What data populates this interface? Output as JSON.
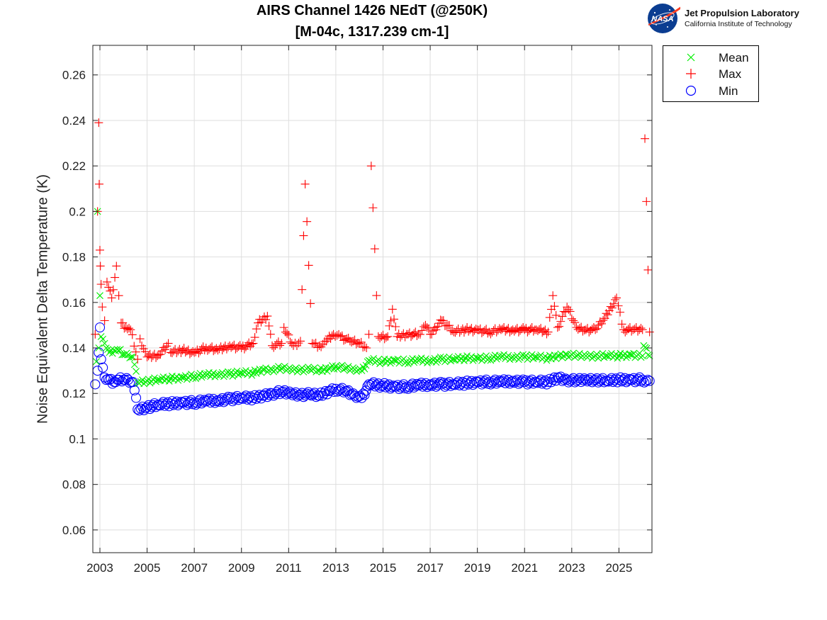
{
  "chart_data": {
    "type": "scatter",
    "title": "AIRS Channel 1426 NEdT (@250K)",
    "subtitle": "[M-04c, 1317.239 cm-1]",
    "ylabel": "Noise Equivalent Delta Temperature (K)",
    "xlim": [
      2002.7,
      2026.4
    ],
    "ylim": [
      0.05,
      0.273
    ],
    "x_ticks": [
      2003,
      2005,
      2007,
      2009,
      2011,
      2013,
      2015,
      2017,
      2019,
      2021,
      2023,
      2025
    ],
    "x_tick_labels": [
      "2003",
      "2005",
      "2007",
      "2009",
      "2011",
      "2013",
      "2015",
      "2017",
      "2019",
      "2021",
      "2023",
      "2025"
    ],
    "y_ticks": [
      0.06,
      0.08,
      0.1,
      0.12,
      0.14,
      0.16,
      0.18,
      0.2,
      0.22,
      0.24,
      0.26
    ],
    "y_tick_labels": [
      "0.06",
      "0.08",
      "0.1",
      "0.12",
      "0.14",
      "0.16",
      "0.18",
      "0.2",
      "0.22",
      "0.24",
      "0.26"
    ],
    "grid": true,
    "legend_position": "outside top-right",
    "series": [
      {
        "name": "Mean",
        "marker": "x",
        "color": "#00ee00",
        "points": [
          [
            2002.85,
            0.134
          ],
          [
            2002.9,
            0.2
          ],
          [
            2002.95,
            0.14
          ],
          [
            2003.0,
            0.163
          ],
          [
            2003.05,
            0.145
          ],
          [
            2003.2,
            0.142
          ],
          [
            2003.4,
            0.138
          ],
          [
            2003.6,
            0.139
          ],
          [
            2003.8,
            0.139
          ],
          [
            2004.0,
            0.137
          ],
          [
            2004.2,
            0.137
          ],
          [
            2004.4,
            0.136
          ],
          [
            2004.6,
            0.125
          ],
          [
            2005.0,
            0.1255
          ],
          [
            2005.5,
            0.126
          ],
          [
            2006.0,
            0.1265
          ],
          [
            2006.5,
            0.127
          ],
          [
            2007.0,
            0.1275
          ],
          [
            2007.5,
            0.128
          ],
          [
            2008.0,
            0.1285
          ],
          [
            2008.5,
            0.1285
          ],
          [
            2009.0,
            0.129
          ],
          [
            2009.5,
            0.129
          ],
          [
            2009.9,
            0.1305
          ],
          [
            2010.3,
            0.1305
          ],
          [
            2010.7,
            0.131
          ],
          [
            2011.1,
            0.1305
          ],
          [
            2011.5,
            0.1305
          ],
          [
            2011.9,
            0.1305
          ],
          [
            2012.3,
            0.13
          ],
          [
            2012.7,
            0.131
          ],
          [
            2013.0,
            0.132
          ],
          [
            2013.4,
            0.131
          ],
          [
            2013.8,
            0.1305
          ],
          [
            2014.1,
            0.13
          ],
          [
            2014.4,
            0.1345
          ],
          [
            2015.0,
            0.134
          ],
          [
            2015.5,
            0.1345
          ],
          [
            2016.0,
            0.134
          ],
          [
            2016.5,
            0.1345
          ],
          [
            2017.0,
            0.1345
          ],
          [
            2017.5,
            0.135
          ],
          [
            2018.0,
            0.135
          ],
          [
            2018.5,
            0.1355
          ],
          [
            2019.0,
            0.1355
          ],
          [
            2019.5,
            0.1355
          ],
          [
            2020.0,
            0.136
          ],
          [
            2020.5,
            0.136
          ],
          [
            2021.0,
            0.136
          ],
          [
            2021.5,
            0.136
          ],
          [
            2022.0,
            0.1355
          ],
          [
            2022.4,
            0.1365
          ],
          [
            2022.8,
            0.137
          ],
          [
            2023.2,
            0.1365
          ],
          [
            2023.6,
            0.1365
          ],
          [
            2024.0,
            0.1365
          ],
          [
            2024.5,
            0.1365
          ],
          [
            2025.0,
            0.1365
          ],
          [
            2025.5,
            0.137
          ],
          [
            2026.0,
            0.1365
          ],
          [
            2026.05,
            0.141
          ],
          [
            2026.3,
            0.1365
          ]
        ]
      },
      {
        "name": "Max",
        "marker": "+",
        "color": "#ff0000",
        "points": [
          [
            2002.8,
            0.146
          ],
          [
            2002.9,
            0.2
          ],
          [
            2002.95,
            0.239
          ],
          [
            2002.97,
            0.212
          ],
          [
            2003.0,
            0.183
          ],
          [
            2003.02,
            0.176
          ],
          [
            2003.05,
            0.168
          ],
          [
            2003.1,
            0.158
          ],
          [
            2003.2,
            0.152
          ],
          [
            2003.3,
            0.169
          ],
          [
            2003.5,
            0.162
          ],
          [
            2003.7,
            0.176
          ],
          [
            2003.8,
            0.163
          ],
          [
            2003.9,
            0.151
          ],
          [
            2004.1,
            0.149
          ],
          [
            2004.3,
            0.148
          ],
          [
            2004.6,
            0.135
          ],
          [
            2004.7,
            0.144
          ],
          [
            2005.0,
            0.136
          ],
          [
            2005.5,
            0.137
          ],
          [
            2005.9,
            0.142
          ],
          [
            2006.0,
            0.138
          ],
          [
            2006.5,
            0.139
          ],
          [
            2007.0,
            0.138
          ],
          [
            2007.5,
            0.14
          ],
          [
            2008.0,
            0.139
          ],
          [
            2008.5,
            0.141
          ],
          [
            2009.0,
            0.14
          ],
          [
            2009.5,
            0.142
          ],
          [
            2009.7,
            0.151
          ],
          [
            2010.1,
            0.154
          ],
          [
            2010.3,
            0.141
          ],
          [
            2010.7,
            0.142
          ],
          [
            2010.8,
            0.149
          ],
          [
            2011.2,
            0.141
          ],
          [
            2011.5,
            0.143
          ],
          [
            2011.7,
            0.212
          ],
          [
            2012.0,
            0.142
          ],
          [
            2012.3,
            0.141
          ],
          [
            2012.6,
            0.143
          ],
          [
            2012.9,
            0.146
          ],
          [
            2013.2,
            0.145
          ],
          [
            2013.6,
            0.143
          ],
          [
            2014.0,
            0.142
          ],
          [
            2014.3,
            0.14
          ],
          [
            2014.4,
            0.146
          ],
          [
            2014.5,
            0.22
          ],
          [
            2014.8,
            0.145
          ],
          [
            2015.2,
            0.145
          ],
          [
            2015.4,
            0.157
          ],
          [
            2015.6,
            0.145
          ],
          [
            2016.0,
            0.146
          ],
          [
            2016.5,
            0.146
          ],
          [
            2016.8,
            0.15
          ],
          [
            2017.0,
            0.146
          ],
          [
            2017.5,
            0.152
          ],
          [
            2018.0,
            0.147
          ],
          [
            2018.5,
            0.148
          ],
          [
            2019.0,
            0.148
          ],
          [
            2019.5,
            0.147
          ],
          [
            2020.0,
            0.148
          ],
          [
            2020.5,
            0.148
          ],
          [
            2021.0,
            0.148
          ],
          [
            2021.5,
            0.148
          ],
          [
            2022.0,
            0.147
          ],
          [
            2022.2,
            0.163
          ],
          [
            2022.4,
            0.149
          ],
          [
            2022.8,
            0.158
          ],
          [
            2023.2,
            0.149
          ],
          [
            2023.6,
            0.148
          ],
          [
            2024.0,
            0.148
          ],
          [
            2024.4,
            0.153
          ],
          [
            2024.9,
            0.162
          ],
          [
            2025.2,
            0.148
          ],
          [
            2025.6,
            0.148
          ],
          [
            2026.0,
            0.148
          ],
          [
            2026.1,
            0.232
          ],
          [
            2026.3,
            0.147
          ]
        ]
      },
      {
        "name": "Min",
        "marker": "o",
        "color": "#0000ff",
        "points": [
          [
            2002.8,
            0.124
          ],
          [
            2002.9,
            0.13
          ],
          [
            2002.95,
            0.138
          ],
          [
            2003.0,
            0.149
          ],
          [
            2003.05,
            0.135
          ],
          [
            2003.2,
            0.127
          ],
          [
            2003.4,
            0.126
          ],
          [
            2003.6,
            0.125
          ],
          [
            2003.8,
            0.126
          ],
          [
            2004.0,
            0.126
          ],
          [
            2004.2,
            0.126
          ],
          [
            2004.4,
            0.125
          ],
          [
            2004.6,
            0.113
          ],
          [
            2005.0,
            0.114
          ],
          [
            2005.5,
            0.115
          ],
          [
            2006.0,
            0.1155
          ],
          [
            2006.5,
            0.116
          ],
          [
            2007.0,
            0.116
          ],
          [
            2007.5,
            0.1165
          ],
          [
            2008.0,
            0.117
          ],
          [
            2008.5,
            0.1175
          ],
          [
            2009.0,
            0.118
          ],
          [
            2009.5,
            0.118
          ],
          [
            2009.9,
            0.119
          ],
          [
            2010.3,
            0.12
          ],
          [
            2010.7,
            0.1205
          ],
          [
            2011.1,
            0.12
          ],
          [
            2011.5,
            0.1195
          ],
          [
            2011.9,
            0.1195
          ],
          [
            2012.3,
            0.119
          ],
          [
            2012.7,
            0.121
          ],
          [
            2013.0,
            0.122
          ],
          [
            2013.4,
            0.121
          ],
          [
            2013.8,
            0.119
          ],
          [
            2014.1,
            0.118
          ],
          [
            2014.4,
            0.124
          ],
          [
            2015.0,
            0.1235
          ],
          [
            2015.5,
            0.123
          ],
          [
            2016.0,
            0.123
          ],
          [
            2016.5,
            0.1235
          ],
          [
            2017.0,
            0.124
          ],
          [
            2017.5,
            0.124
          ],
          [
            2018.0,
            0.124
          ],
          [
            2018.5,
            0.1245
          ],
          [
            2019.0,
            0.125
          ],
          [
            2019.5,
            0.125
          ],
          [
            2020.0,
            0.125
          ],
          [
            2020.5,
            0.1255
          ],
          [
            2021.0,
            0.125
          ],
          [
            2021.5,
            0.125
          ],
          [
            2022.0,
            0.125
          ],
          [
            2022.4,
            0.127
          ],
          [
            2022.8,
            0.126
          ],
          [
            2023.2,
            0.1255
          ],
          [
            2023.6,
            0.126
          ],
          [
            2024.0,
            0.126
          ],
          [
            2024.5,
            0.1255
          ],
          [
            2025.0,
            0.126
          ],
          [
            2025.5,
            0.126
          ],
          [
            2026.0,
            0.126
          ],
          [
            2026.3,
            0.1255
          ]
        ]
      }
    ]
  },
  "logo": {
    "nasa_text": "NASA",
    "name": "Jet Propulsion Laboratory",
    "subtitle": "California Institute of Technology"
  },
  "colors": {
    "mean": "#00ee00",
    "max": "#ff0000",
    "min": "#0000ff",
    "nasa_blue": "#0b3d91",
    "nasa_red": "#fc3d21"
  }
}
